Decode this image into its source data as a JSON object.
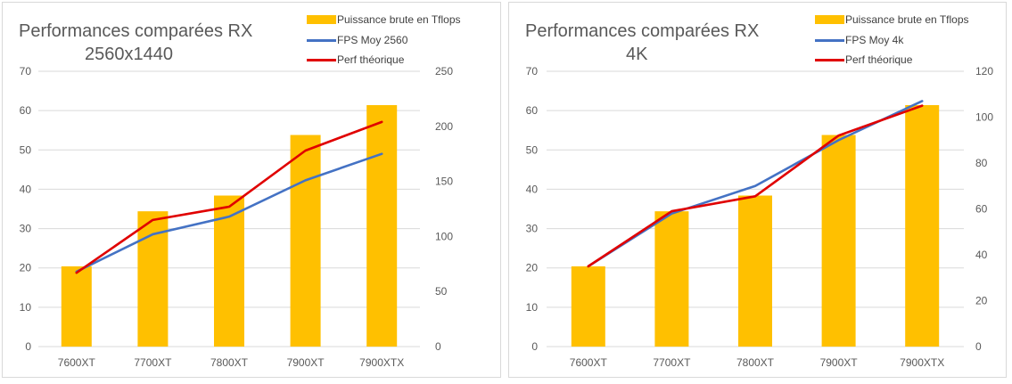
{
  "chart_data": [
    {
      "type": "bar+line",
      "title": "Performances comparées RX",
      "subtitle": "2560x1440",
      "categories": [
        "7600XT",
        "7700XT",
        "7800XT",
        "7900XT",
        "7900XTX"
      ],
      "series": [
        {
          "name": "Puissance brute en Tflops",
          "kind": "bar",
          "axis": "left",
          "color": "#FFC000",
          "values": [
            20.4,
            34.4,
            38.4,
            53.8,
            61.4
          ]
        },
        {
          "name": "FPS Moy  2560",
          "kind": "line",
          "axis": "right",
          "color": "#4472C4",
          "values": [
            68,
            102,
            118,
            151,
            175
          ]
        },
        {
          "name": "Perf théorique",
          "kind": "line",
          "axis": "right",
          "color": "#E00000",
          "values": [
            67,
            115,
            127,
            178,
            204
          ]
        }
      ],
      "y_left": {
        "min": 0,
        "max": 70,
        "ticks": [
          "0",
          "10",
          "20",
          "30",
          "40",
          "50",
          "60",
          "70"
        ]
      },
      "y_right": {
        "min": 0,
        "max": 250,
        "ticks": [
          "0",
          "50",
          "100",
          "150",
          "200",
          "250"
        ]
      },
      "grid": true,
      "legend": "top-right"
    },
    {
      "type": "bar+line",
      "title": "Performances comparées RX",
      "subtitle": "4K",
      "categories": [
        "7600XT",
        "7700XT",
        "7800XT",
        "7900XT",
        "7900XTX"
      ],
      "series": [
        {
          "name": "Puissance brute en Tflops",
          "kind": "bar",
          "axis": "left",
          "color": "#FFC000",
          "values": [
            20.4,
            34.4,
            38.4,
            53.8,
            61.4
          ]
        },
        {
          "name": "FPS Moy 4k",
          "kind": "line",
          "axis": "right",
          "color": "#4472C4",
          "values": [
            35,
            58,
            70,
            90,
            107
          ]
        },
        {
          "name": "Perf théorique",
          "kind": "line",
          "axis": "right",
          "color": "#E00000",
          "values": [
            35,
            59,
            65.5,
            92,
            105
          ]
        }
      ],
      "y_left": {
        "min": 0,
        "max": 70,
        "ticks": [
          "0",
          "10",
          "20",
          "30",
          "40",
          "50",
          "60",
          "70"
        ]
      },
      "y_right": {
        "min": 0,
        "max": 120,
        "ticks": [
          "0",
          "20",
          "40",
          "60",
          "80",
          "100",
          "120"
        ]
      },
      "grid": true,
      "legend": "top-right"
    }
  ]
}
